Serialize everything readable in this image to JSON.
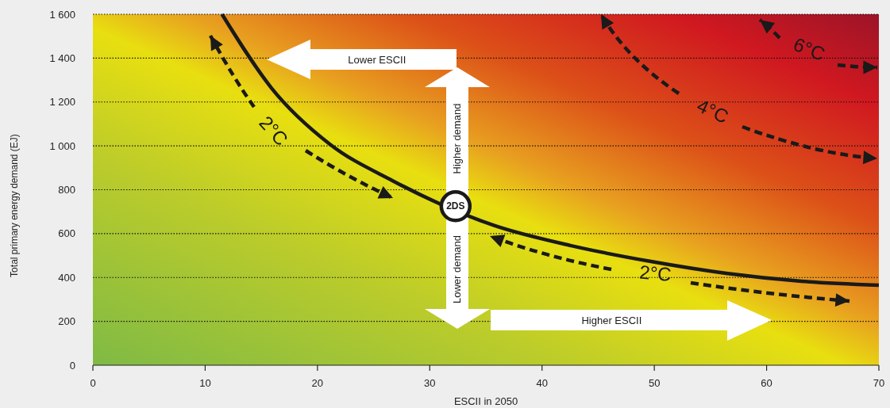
{
  "chart_data": {
    "type": "line",
    "xlabel": "ESCII in 2050",
    "ylabel": "Total primary energy demand (EJ)",
    "xlim": [
      0,
      70
    ],
    "xticks": [
      0,
      10,
      20,
      30,
      40,
      50,
      60,
      70
    ],
    "ylim": [
      0,
      1600
    ],
    "yticks": [
      {
        "value": 0,
        "label": "0"
      },
      {
        "value": 200,
        "label": "200"
      },
      {
        "value": 400,
        "label": "400"
      },
      {
        "value": 600,
        "label": "600"
      },
      {
        "value": 800,
        "label": "800"
      },
      {
        "value": 1000,
        "label": "1 000"
      },
      {
        "value": 1200,
        "label": "1 200"
      },
      {
        "value": 1400,
        "label": "1 400"
      },
      {
        "value": 1600,
        "label": "1 600"
      }
    ],
    "grid": "y",
    "line_style": "solid",
    "series": [
      {
        "color": "#1a1a1a",
        "x": [
          11.5,
          15.9,
          21.1,
          26.7,
          35.8,
          42.6,
          49.7,
          56.4,
          63.1,
          70
        ],
        "values": [
          1600,
          1264,
          1008,
          841,
          636,
          545,
          473,
          419,
          383,
          365
        ]
      }
    ],
    "annotations": [
      {
        "text": "2DS",
        "x": 32.3,
        "y": 725
      },
      "Lower ESCII",
      "Higher ESCII",
      "Higher demand",
      "Lower demand",
      "2°C",
      "2°C",
      "4°C",
      "6°C"
    ]
  }
}
